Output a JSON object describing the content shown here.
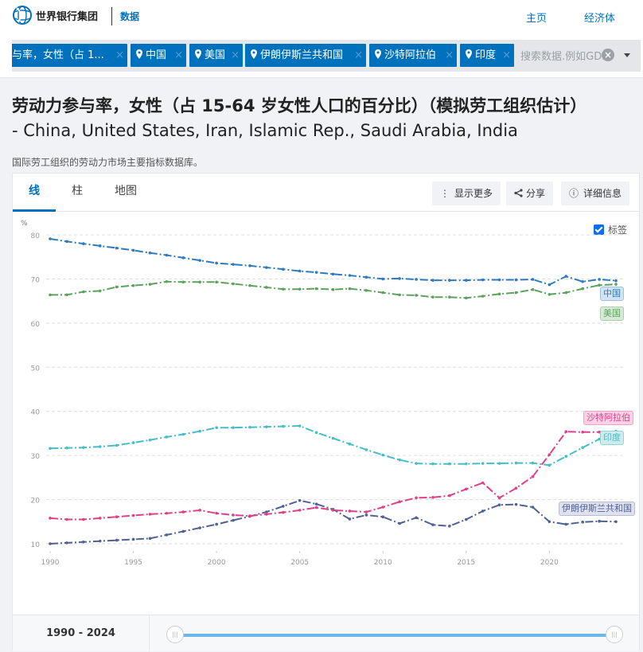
{
  "header": {
    "logo_text": "世界银行集团",
    "section_label": "数据",
    "nav": [
      {
        "label": "主页"
      },
      {
        "label": "经济体"
      }
    ]
  },
  "search": {
    "chips": [
      {
        "label": "与率，女性（占 1...",
        "type": "indicator"
      },
      {
        "label": "中国",
        "type": "country"
      },
      {
        "label": "美国",
        "type": "country"
      },
      {
        "label": "伊朗伊斯兰共和国",
        "type": "country"
      },
      {
        "label": "沙特阿拉伯",
        "type": "country"
      },
      {
        "label": "印度",
        "type": "country"
      }
    ],
    "remove_glyph": "×",
    "placeholder": "搜索数据.例如GDP",
    "clear_glyph": "×"
  },
  "page": {
    "title": "劳动力参与率，女性（占 15-64 岁女性人口的百分比）（模拟劳工组织估计）",
    "subtitle": "- China, United States, Iran, Islamic Rep., Saudi Arabia, India",
    "source": "国际劳工组织的劳动力市场主要指标数据库。"
  },
  "tabs": [
    {
      "label": "线",
      "active": true
    },
    {
      "label": "柱",
      "active": false
    },
    {
      "label": "地图",
      "active": false
    }
  ],
  "toolbar": {
    "more_label": "显示更多",
    "more_icon": "⋮",
    "share_label": "分享",
    "share_icon": "<",
    "details_label": "详细信息",
    "details_icon": "ⓘ"
  },
  "labels_toggle": {
    "label": "标签",
    "checked": true
  },
  "range": {
    "label": "1990 - 2024",
    "handle_glyph": "|||"
  },
  "colors": {
    "brand": "#0071bc",
    "china": "#2f7bbf",
    "usa": "#5aa35c",
    "iran": "#4f6196",
    "saudi": "#e0408a",
    "india": "#45bec8"
  },
  "chart_data": {
    "type": "line",
    "title": "劳动力参与率，女性（占 15-64 岁女性人口的百分比）（模拟劳工组织估计）",
    "xlabel": "",
    "ylabel": "%",
    "ylim": [
      10,
      80
    ],
    "yticks": [
      10,
      20,
      30,
      40,
      50,
      60,
      70,
      80
    ],
    "xticks": [
      1990,
      1995,
      2000,
      2005,
      2010,
      2015,
      2020
    ],
    "grid": true,
    "legend": "inline labels at line ends",
    "x": [
      1990,
      1991,
      1992,
      1993,
      1994,
      1995,
      1996,
      1997,
      1998,
      1999,
      2000,
      2001,
      2002,
      2003,
      2004,
      2005,
      2006,
      2007,
      2008,
      2009,
      2010,
      2011,
      2012,
      2013,
      2014,
      2015,
      2016,
      2017,
      2018,
      2019,
      2020,
      2021,
      2022,
      2023,
      2024
    ],
    "series": [
      {
        "name": "中国",
        "color": "#2f7bbf",
        "values": [
          79.1,
          78.5,
          78.0,
          77.5,
          77.0,
          76.5,
          75.9,
          75.4,
          74.8,
          74.2,
          73.6,
          73.3,
          73.0,
          72.6,
          72.2,
          71.8,
          71.5,
          71.1,
          70.8,
          70.4,
          70.0,
          70.1,
          69.9,
          69.7,
          69.7,
          69.7,
          69.8,
          69.8,
          69.8,
          69.9,
          68.7,
          70.6,
          69.4,
          69.9,
          69.6
        ]
      },
      {
        "name": "美国",
        "color": "#5aa35c",
        "values": [
          66.4,
          66.4,
          67.1,
          67.3,
          68.2,
          68.5,
          68.8,
          69.4,
          69.3,
          69.3,
          69.3,
          68.9,
          68.5,
          68.1,
          67.7,
          67.7,
          67.8,
          67.6,
          67.8,
          67.4,
          66.9,
          66.4,
          66.3,
          65.9,
          65.9,
          65.7,
          66.1,
          66.6,
          66.9,
          67.6,
          66.5,
          66.9,
          67.8,
          68.6,
          68.8
        ]
      },
      {
        "name": "伊朗伊斯兰共和国",
        "color": "#4f6196",
        "values": [
          10.0,
          10.2,
          10.4,
          10.6,
          10.8,
          11.0,
          11.2,
          12.0,
          12.8,
          13.6,
          14.4,
          15.3,
          16.2,
          17.2,
          18.5,
          19.8,
          19.0,
          17.8,
          15.6,
          16.5,
          16.1,
          14.6,
          15.9,
          14.3,
          14.0,
          15.5,
          17.4,
          18.8,
          18.9,
          18.3,
          15.0,
          14.4,
          14.9,
          15.1,
          15.0
        ]
      },
      {
        "name": "沙特阿拉伯",
        "color": "#e0408a",
        "values": [
          15.8,
          15.5,
          15.5,
          15.8,
          16.1,
          16.4,
          16.7,
          16.9,
          17.2,
          17.6,
          16.9,
          16.5,
          16.3,
          16.7,
          17.1,
          17.6,
          18.2,
          17.6,
          17.4,
          17.2,
          18.3,
          19.5,
          20.4,
          20.5,
          20.9,
          22.4,
          23.8,
          20.4,
          22.6,
          25.2,
          30.2,
          35.4,
          35.3,
          35.3,
          35.4
        ]
      },
      {
        "name": "印度",
        "color": "#45bec8",
        "values": [
          31.6,
          31.7,
          31.8,
          32.0,
          32.3,
          32.9,
          33.5,
          34.2,
          34.8,
          35.5,
          36.3,
          36.3,
          36.4,
          36.5,
          36.6,
          36.7,
          35.2,
          33.9,
          32.6,
          31.3,
          30.1,
          29.0,
          28.2,
          28.1,
          28.1,
          28.1,
          28.2,
          28.2,
          28.3,
          28.3,
          27.8,
          29.8,
          31.8,
          33.7,
          35.5
        ]
      }
    ]
  }
}
